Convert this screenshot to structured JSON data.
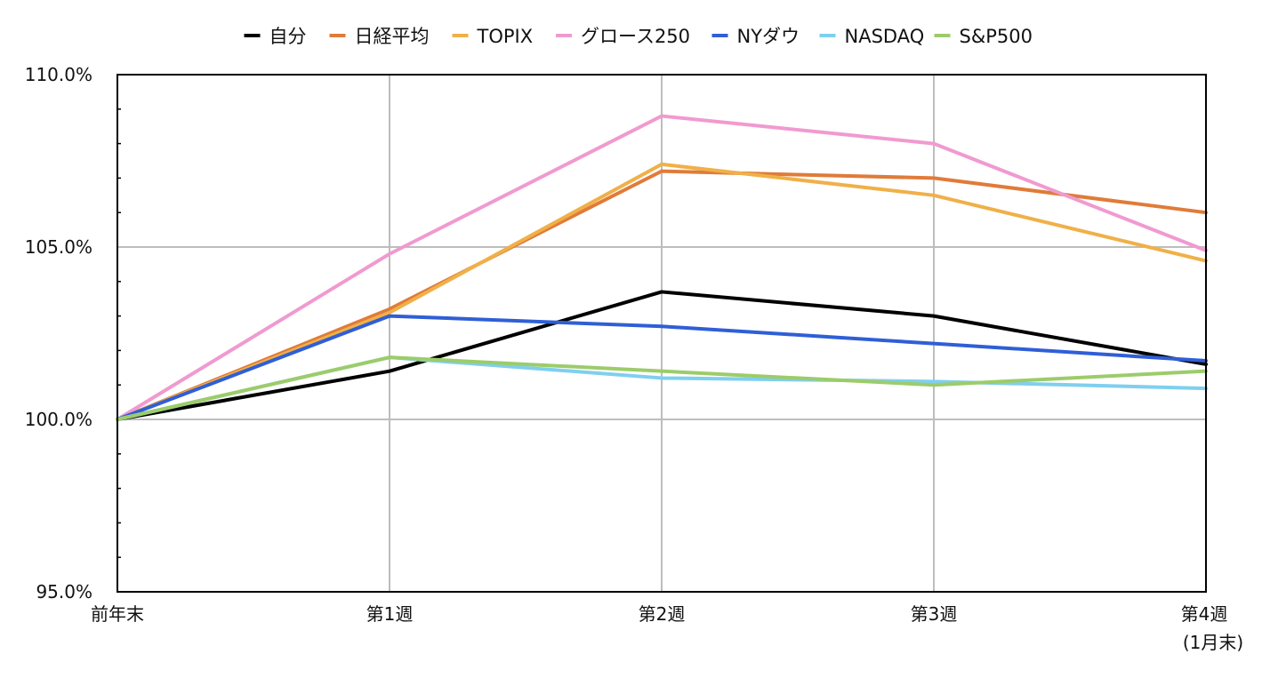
{
  "chart_data": {
    "type": "line",
    "title": "",
    "xlabel": "",
    "ylabel": "",
    "categories": [
      "前年末",
      "第1週",
      "第2週",
      "第3週",
      "第4週"
    ],
    "category_sublabels": [
      "",
      "",
      "",
      "",
      "(1月末)"
    ],
    "ylim": [
      95.0,
      110.0
    ],
    "yticks": [
      95.0,
      100.0,
      105.0,
      110.0
    ],
    "ytick_labels": [
      "95.0%",
      "100.0%",
      "105.0%",
      "110.0%"
    ],
    "y_minor_step": 1.0,
    "grid": true,
    "legend_position": "top",
    "series": [
      {
        "name": "自分",
        "color": "#000000",
        "values": [
          100.0,
          101.4,
          103.7,
          103.0,
          101.6
        ]
      },
      {
        "name": "日経平均",
        "color": "#e07b39",
        "values": [
          100.0,
          103.2,
          107.2,
          107.0,
          106.0
        ]
      },
      {
        "name": "TOPIX",
        "color": "#f0b048",
        "values": [
          100.0,
          103.1,
          107.4,
          106.5,
          104.6
        ]
      },
      {
        "name": "グロース250",
        "color": "#f09ad0",
        "values": [
          100.0,
          104.8,
          108.8,
          108.0,
          104.9
        ]
      },
      {
        "name": "NYダウ",
        "color": "#2f5fd6",
        "values": [
          100.0,
          103.0,
          102.7,
          102.2,
          101.7
        ]
      },
      {
        "name": "NASDAQ",
        "color": "#7fcfef",
        "values": [
          100.0,
          101.8,
          101.2,
          101.1,
          100.9
        ]
      },
      {
        "name": "S&P500",
        "color": "#9ccc6a",
        "values": [
          100.0,
          101.8,
          101.4,
          101.0,
          101.4
        ]
      }
    ],
    "draw_order": [
      0,
      1,
      2,
      3,
      4,
      5,
      6
    ]
  }
}
